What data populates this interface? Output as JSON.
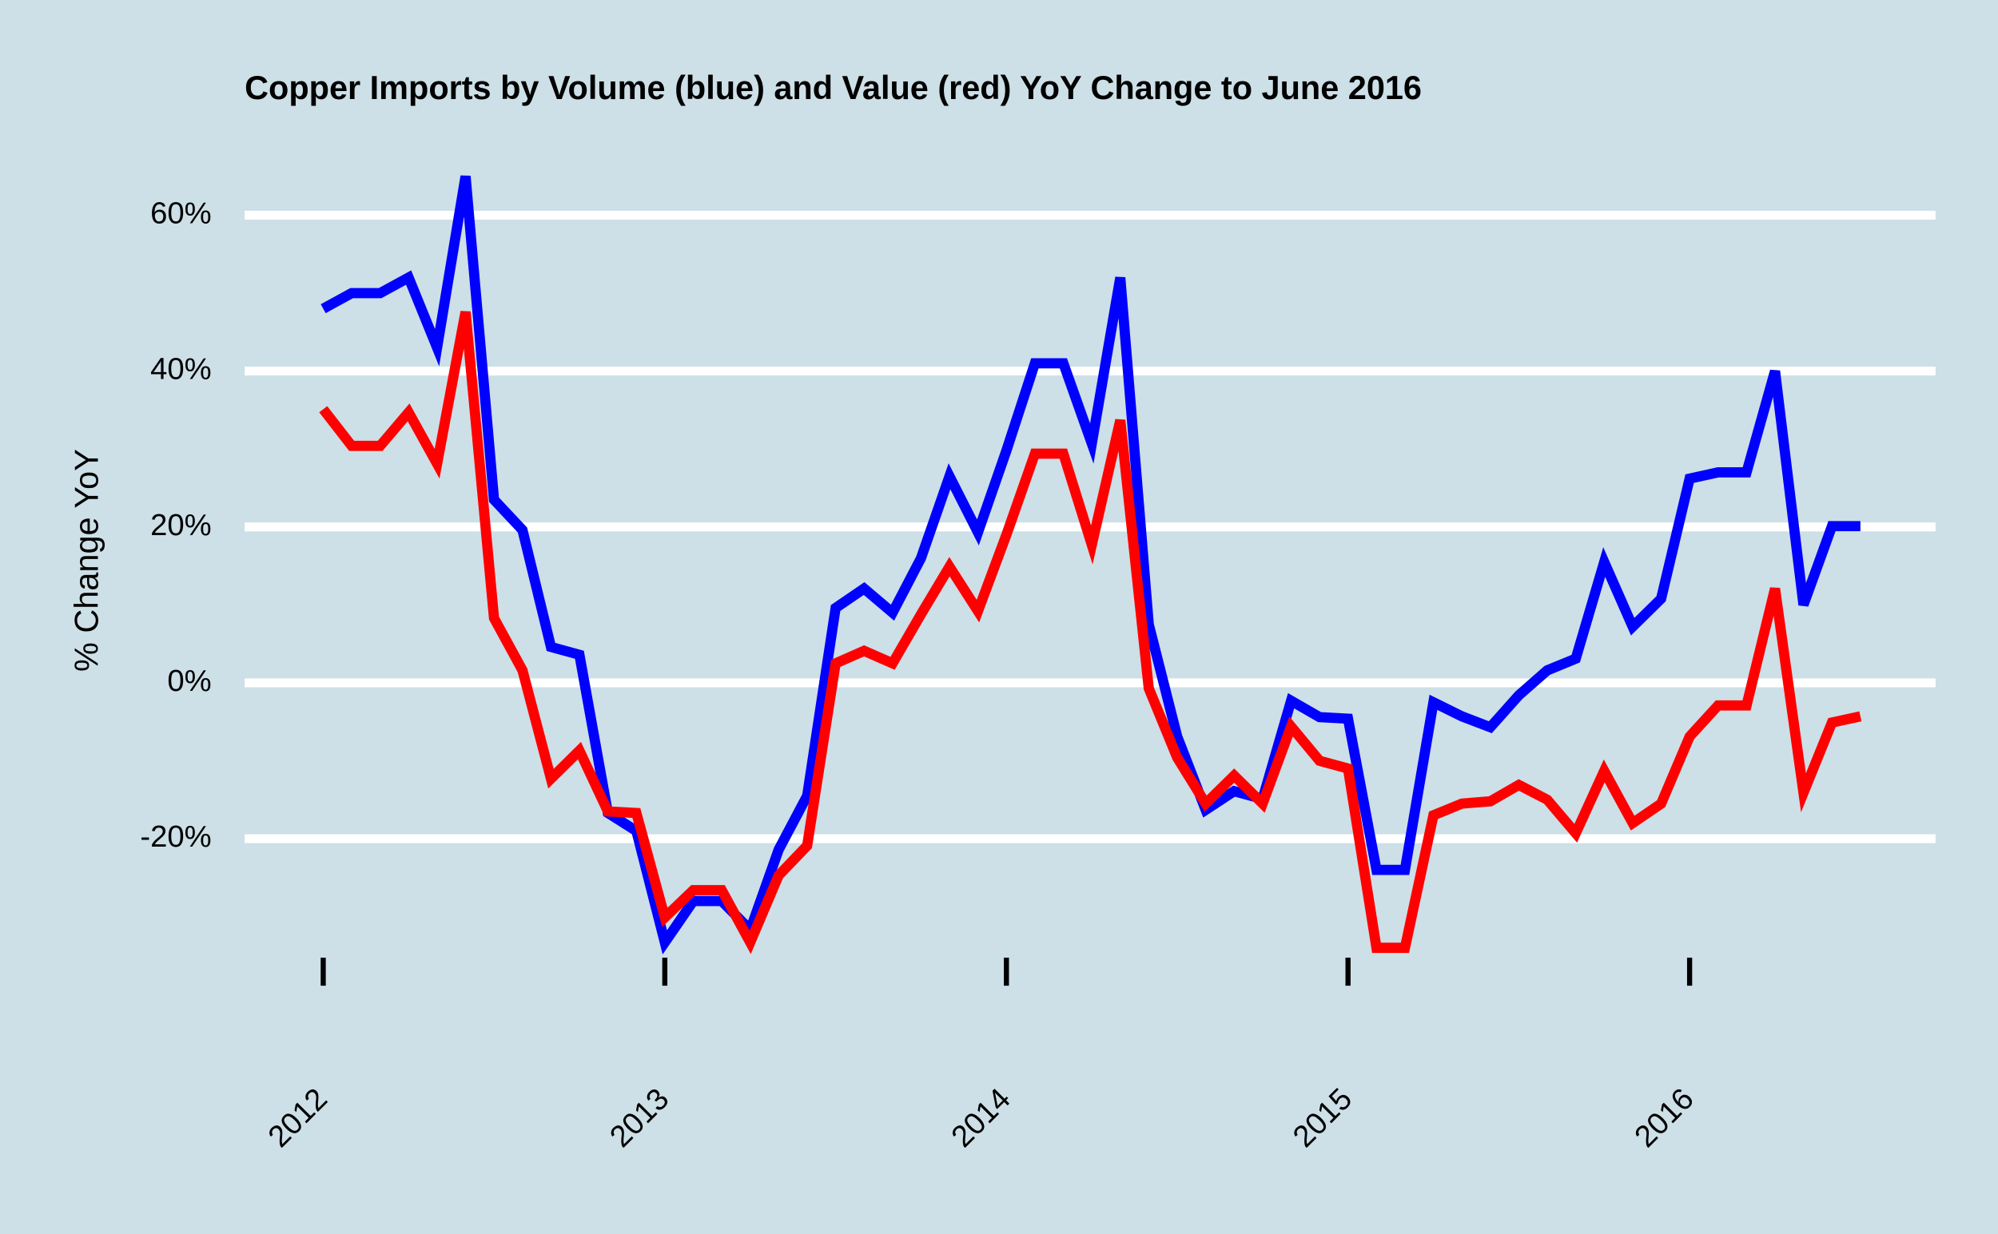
{
  "chart_data": {
    "type": "line",
    "title": "Copper Imports by Volume (blue) and Value (red) YoY Change to June 2016",
    "y_label": "% Change YoY",
    "x": [
      "2012-01",
      "2012-02",
      "2012-03",
      "2012-04",
      "2012-05",
      "2012-06",
      "2012-07",
      "2012-08",
      "2012-09",
      "2012-10",
      "2012-11",
      "2012-12",
      "2013-01",
      "2013-02",
      "2013-03",
      "2013-04",
      "2013-05",
      "2013-06",
      "2013-07",
      "2013-08",
      "2013-09",
      "2013-10",
      "2013-11",
      "2013-12",
      "2014-01",
      "2014-02",
      "2014-03",
      "2014-04",
      "2014-05",
      "2014-06",
      "2014-07",
      "2014-08",
      "2014-09",
      "2014-10",
      "2014-11",
      "2014-12",
      "2015-01",
      "2015-02",
      "2015-03",
      "2015-04",
      "2015-05",
      "2015-06",
      "2015-07",
      "2015-08",
      "2015-09",
      "2015-10",
      "2015-11",
      "2015-12",
      "2016-01",
      "2016-02",
      "2016-03",
      "2016-04",
      "2016-05",
      "2016-06",
      "2016-07"
    ],
    "series": [
      {
        "color": "#0000ff",
        "values": [
          48,
          50,
          50,
          52,
          43,
          65,
          23.5,
          19.6,
          4.6,
          3.6,
          -16.7,
          -19,
          -33.3,
          -28,
          -28,
          -31.7,
          -21.4,
          -14.5,
          9.6,
          12.1,
          9,
          16,
          26.5,
          19.3,
          29.8,
          41,
          41,
          30.7,
          52,
          7.5,
          -6.9,
          -16.3,
          -13.9,
          -14.9,
          -2.3,
          -4.4,
          -4.6,
          -24,
          -24,
          -2.5,
          -4.3,
          -5.7,
          -1.6,
          1.6,
          3.1,
          15.5,
          7.2,
          10.8,
          26.2,
          27,
          27,
          40,
          10,
          20.1,
          20.1
        ]
      },
      {
        "color": "#ff0000",
        "values": [
          35.1,
          30.4,
          30.4,
          34.7,
          28.1,
          47.6,
          8.3,
          1.6,
          -12.3,
          -8.7,
          -16.5,
          -16.7,
          -30.1,
          -26.6,
          -26.6,
          -33.3,
          -24.7,
          -20.9,
          2.5,
          4.1,
          2.5,
          8.8,
          14.9,
          9.2,
          19,
          29.4,
          29.4,
          17.7,
          33.7,
          -0.7,
          -9.6,
          -15.5,
          -11.9,
          -15.5,
          -5.6,
          -10,
          -11,
          -34,
          -34,
          -17,
          -15.5,
          -15.2,
          -13.1,
          -15,
          -19.3,
          -11.3,
          -18,
          -15.5,
          -6.9,
          -2.9,
          -2.9,
          12.1,
          -14.1,
          -5.1,
          -4.3
        ]
      }
    ],
    "xlim": [
      2011.77,
      2016.72
    ],
    "xticks": [
      2012,
      2013,
      2014,
      2015,
      2016
    ],
    "ylim": [
      -40,
      68
    ],
    "yticks": [
      {
        "value": -20,
        "label": "-20%"
      },
      {
        "value": 0,
        "label": "0%"
      },
      {
        "value": 20,
        "label": "20%"
      },
      {
        "value": 40,
        "label": "40%"
      },
      {
        "value": 60,
        "label": "60%"
      }
    ],
    "grid": true
  }
}
